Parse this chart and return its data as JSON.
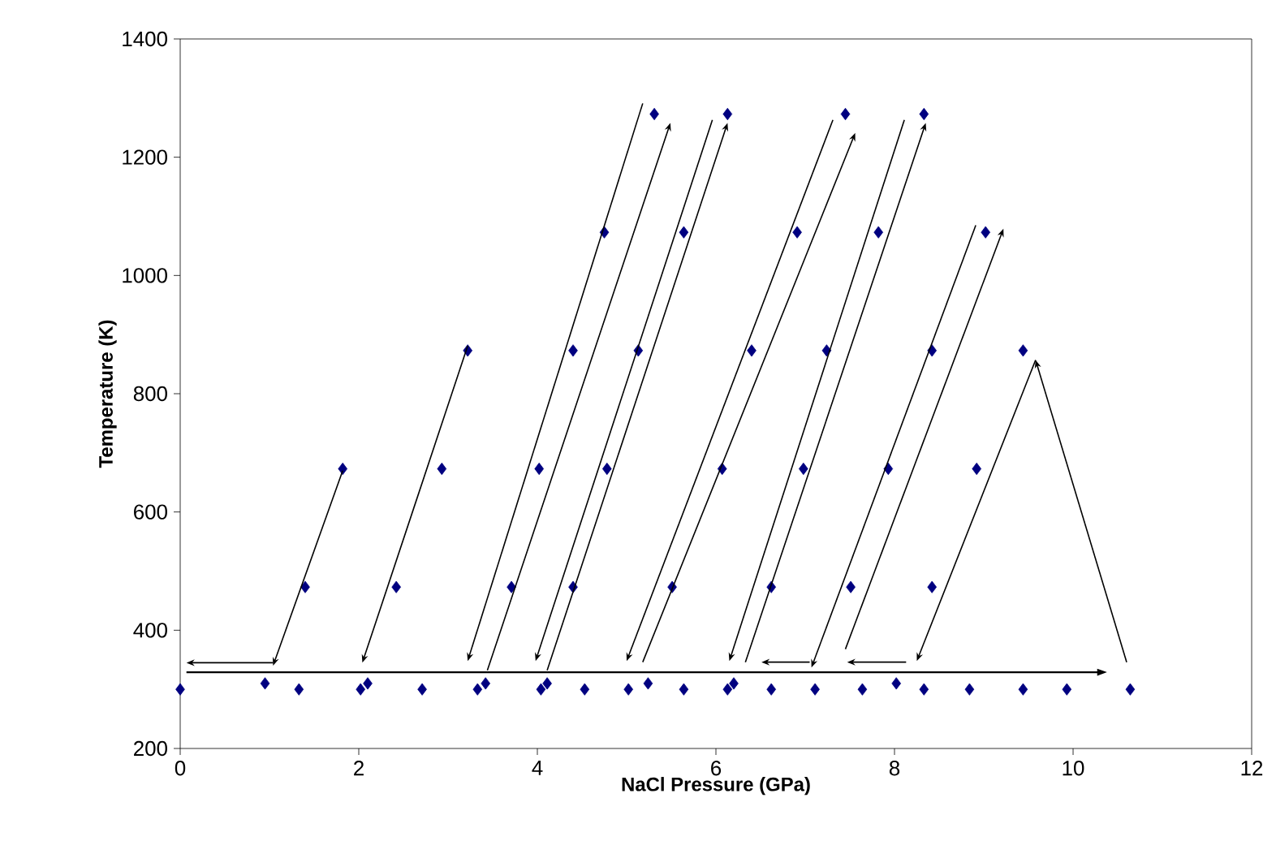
{
  "chart_data": {
    "type": "scatter",
    "xlabel": "NaCl Pressure (GPa)",
    "ylabel": "Temperature (K)",
    "xlim": [
      0,
      12
    ],
    "xticks": [
      0,
      2,
      4,
      6,
      8,
      10,
      12
    ],
    "ylim": [
      200,
      1400
    ],
    "yticks": [
      200,
      400,
      600,
      800,
      1000,
      1200,
      1400
    ],
    "grid": false,
    "marker": "diamond",
    "series": [
      {
        "color": "#000080",
        "x": [
          0.0,
          0.95,
          1.33,
          2.02,
          2.1,
          2.71,
          3.33,
          3.42,
          4.04,
          4.11,
          4.53,
          5.02,
          5.24,
          5.64,
          6.13,
          6.2,
          6.62,
          7.11,
          7.64,
          8.02,
          8.33,
          8.84,
          9.44,
          9.93,
          10.64,
          1.4,
          2.42,
          3.71,
          4.4,
          5.51,
          6.62,
          7.51,
          8.42,
          1.82,
          2.93,
          4.02,
          4.78,
          6.07,
          6.98,
          7.93,
          8.92,
          3.22,
          4.4,
          5.13,
          6.4,
          7.24,
          8.42,
          9.44,
          4.75,
          5.64,
          6.91,
          7.82,
          9.02,
          5.31,
          6.13,
          7.45,
          8.33
        ],
        "values": [
          300,
          310,
          300,
          300,
          310,
          300,
          300,
          310,
          300,
          310,
          300,
          300,
          310,
          300,
          300,
          310,
          300,
          300,
          300,
          310,
          300,
          300,
          300,
          300,
          300,
          473,
          473,
          473,
          473,
          473,
          473,
          473,
          473,
          673,
          673,
          673,
          673,
          673,
          673,
          673,
          673,
          873,
          873,
          873,
          873,
          873,
          873,
          873,
          1073,
          1073,
          1073,
          1073,
          1073,
          1273,
          1273,
          1273,
          1273
        ]
      }
    ]
  }
}
